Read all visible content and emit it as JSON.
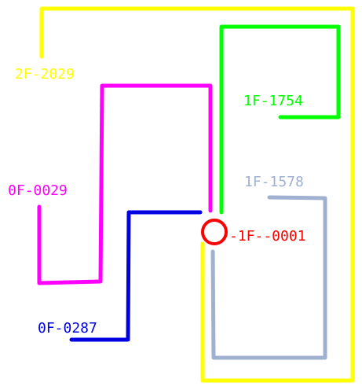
{
  "origin": {
    "label": "-1F--0001",
    "color": "#ff0000"
  },
  "routes": [
    {
      "id": "2F-2029",
      "label": "2F-2029",
      "color": "#ffff00"
    },
    {
      "id": "1F-1754",
      "label": "1F-1754",
      "color": "#00ff00"
    },
    {
      "id": "0F-0029",
      "label": "0F-0029",
      "color": "#ff00ff"
    },
    {
      "id": "1F-1578",
      "label": "1F-1578",
      "color": "#a0b0d0"
    },
    {
      "id": "0F-0287",
      "label": "0F-0287",
      "color": "#0000e0"
    }
  ]
}
